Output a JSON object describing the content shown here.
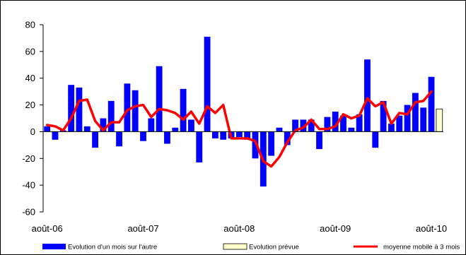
{
  "chart_data": {
    "type": "bar",
    "title": "",
    "xlabel": "",
    "ylabel": "",
    "ylim": [
      -60,
      80
    ],
    "yticks": [
      -60,
      -40,
      -20,
      0,
      20,
      40,
      60,
      80
    ],
    "xtick_labels": [
      {
        "index": 0,
        "label": "août-06"
      },
      {
        "index": 12,
        "label": "août-07"
      },
      {
        "index": 24,
        "label": "août-08"
      },
      {
        "index": 36,
        "label": "août-09"
      },
      {
        "index": 48,
        "label": "août-10"
      }
    ],
    "categories": [
      "2006-08",
      "2006-09",
      "2006-10",
      "2006-11",
      "2006-12",
      "2007-01",
      "2007-02",
      "2007-03",
      "2007-04",
      "2007-05",
      "2007-06",
      "2007-07",
      "2007-08",
      "2007-09",
      "2007-10",
      "2007-11",
      "2007-12",
      "2008-01",
      "2008-02",
      "2008-03",
      "2008-04",
      "2008-05",
      "2008-06",
      "2008-07",
      "2008-08",
      "2008-09",
      "2008-10",
      "2008-11",
      "2008-12",
      "2009-01",
      "2009-02",
      "2009-03",
      "2009-04",
      "2009-05",
      "2009-06",
      "2009-07",
      "2009-08",
      "2009-09",
      "2009-10",
      "2009-11",
      "2009-12",
      "2010-01",
      "2010-02",
      "2010-03",
      "2010-04",
      "2010-05",
      "2010-06",
      "2010-07",
      "2010-08",
      "2010-09"
    ],
    "series": [
      {
        "name": "Evolution d'un mois sur l'autre",
        "kind": "bar",
        "color": "#0000ff",
        "values": [
          4,
          -6,
          1,
          35,
          33,
          4,
          -12,
          10,
          23,
          -11,
          36,
          31,
          -7,
          10,
          49,
          -9,
          3,
          32,
          9,
          -23,
          71,
          -5,
          -6,
          -5,
          -4,
          -6,
          -20,
          -41,
          -18,
          3,
          -10,
          9,
          9,
          9,
          -13,
          11,
          15,
          12,
          3,
          13,
          54,
          -12,
          23,
          6,
          12,
          20,
          29,
          18,
          41,
          null
        ]
      },
      {
        "name": "Evolution prévue",
        "kind": "bar",
        "color": "#ffffcc",
        "values": [
          null,
          null,
          null,
          null,
          null,
          null,
          null,
          null,
          null,
          null,
          null,
          null,
          null,
          null,
          null,
          null,
          null,
          null,
          null,
          null,
          null,
          null,
          null,
          null,
          null,
          null,
          null,
          null,
          null,
          null,
          null,
          null,
          null,
          null,
          null,
          null,
          null,
          null,
          null,
          null,
          null,
          null,
          null,
          null,
          null,
          null,
          null,
          null,
          null,
          17
        ]
      },
      {
        "name": "moyenne mobile à 3 mois",
        "kind": "line",
        "color": "#ff0000",
        "values": [
          5,
          4,
          1,
          10,
          23,
          24,
          8,
          1,
          7,
          7,
          16,
          19,
          20,
          11,
          17,
          16,
          14,
          9,
          15,
          6,
          19,
          14,
          20,
          -5,
          -5,
          -5,
          -7,
          -22,
          -26,
          -19,
          -8,
          1,
          3,
          9,
          2,
          2,
          4,
          13,
          10,
          12,
          25,
          19,
          22,
          6,
          14,
          13,
          22,
          23,
          30,
          null
        ]
      }
    ],
    "legend_position": "bottom",
    "grid": false
  }
}
